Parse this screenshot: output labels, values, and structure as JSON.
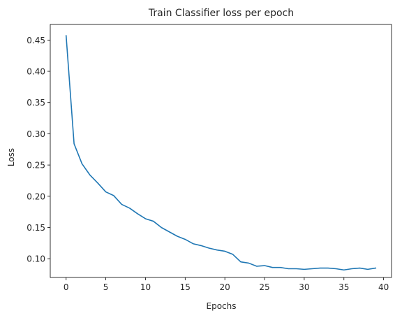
{
  "chart_data": {
    "type": "line",
    "title": "Train Classifier loss per epoch",
    "xlabel": "Epochs",
    "ylabel": "Loss",
    "xlim": [
      -2,
      41
    ],
    "ylim": [
      0.07,
      0.475
    ],
    "xticks": [
      0,
      5,
      10,
      15,
      20,
      25,
      30,
      35,
      40
    ],
    "yticks": [
      0.1,
      0.15,
      0.2,
      0.25,
      0.3,
      0.35,
      0.4,
      0.45
    ],
    "grid": false,
    "series": [
      {
        "color": "#1f77b4",
        "x": [
          0,
          1,
          2,
          3,
          4,
          5,
          6,
          7,
          8,
          9,
          10,
          11,
          12,
          13,
          14,
          15,
          16,
          17,
          18,
          19,
          20,
          21,
          22,
          23,
          24,
          25,
          26,
          27,
          28,
          29,
          30,
          31,
          32,
          33,
          34,
          35,
          36,
          37,
          38,
          39
        ],
        "y": [
          0.457,
          0.284,
          0.252,
          0.234,
          0.221,
          0.207,
          0.201,
          0.187,
          0.181,
          0.172,
          0.164,
          0.16,
          0.15,
          0.143,
          0.136,
          0.131,
          0.124,
          0.121,
          0.117,
          0.114,
          0.112,
          0.107,
          0.095,
          0.093,
          0.088,
          0.089,
          0.086,
          0.086,
          0.084,
          0.084,
          0.083,
          0.084,
          0.085,
          0.085,
          0.084,
          0.082,
          0.084,
          0.085,
          0.083,
          0.085
        ]
      }
    ]
  }
}
